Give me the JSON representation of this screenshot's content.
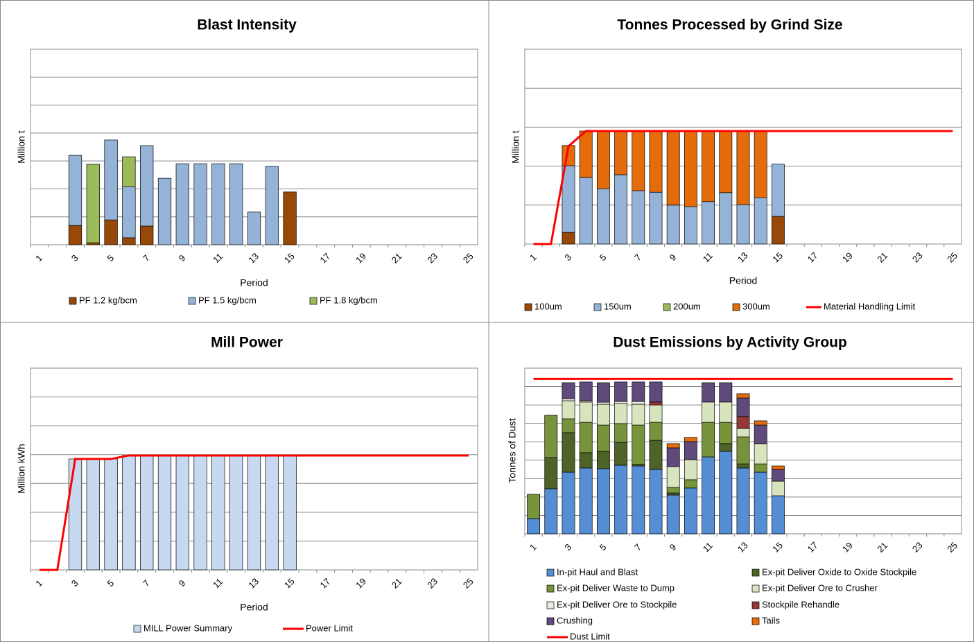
{
  "chart_data": [
    {
      "type": "bar",
      "title": "Blast Intensity",
      "x_label": "Period",
      "y_label": "Million t",
      "stacked": true,
      "grid": true,
      "legend": "bottom",
      "ylim": [
        0,
        7
      ],
      "ygrid": [
        0,
        1,
        2,
        3,
        4,
        5,
        6,
        7
      ],
      "categories": [
        "1",
        null,
        "3",
        null,
        "5",
        null,
        "7",
        null,
        "9",
        null,
        "11",
        null,
        "13",
        null,
        "15",
        null,
        "17",
        null,
        "19",
        null,
        "21",
        null,
        "23",
        null,
        "25"
      ],
      "series": [
        {
          "name": "PF 1.2 kg/bcm",
          "color": "#984807",
          "values": [
            null,
            null,
            0.69,
            0.07,
            0.89,
            0.25,
            0.67,
            null,
            null,
            null,
            null,
            null,
            null,
            null,
            1.89,
            null,
            null,
            null,
            null,
            null,
            null,
            null,
            null,
            null,
            null
          ]
        },
        {
          "name": "PF 1.5 kg/bcm",
          "color": "#95b3d7",
          "values": [
            null,
            null,
            2.51,
            null,
            2.86,
            1.83,
            2.88,
            2.38,
            2.9,
            2.9,
            2.9,
            2.9,
            1.17,
            2.8,
            null,
            null,
            null,
            null,
            null,
            null,
            null,
            null,
            null,
            null,
            null
          ]
        },
        {
          "name": "PF 1.8 kg/bcm",
          "color": "#9bbb59",
          "values": [
            null,
            null,
            null,
            2.81,
            null,
            1.07,
            null,
            null,
            null,
            null,
            null,
            null,
            null,
            null,
            null,
            null,
            null,
            null,
            null,
            null,
            null,
            null,
            null,
            null,
            null
          ]
        }
      ]
    },
    {
      "type": "bar",
      "title": "Tonnes Processed by Grind Size",
      "x_label": "Period",
      "y_label": "Million t",
      "stacked": true,
      "grid": true,
      "legend": "bottom",
      "ylim": [
        0,
        5
      ],
      "ygrid": [
        0,
        1,
        2,
        3,
        4,
        5
      ],
      "categories": [
        "1",
        null,
        "3",
        null,
        "5",
        null,
        "7",
        null,
        "9",
        null,
        "11",
        null,
        "13",
        null,
        "15",
        null,
        "17",
        null,
        "19",
        null,
        "21",
        null,
        "23",
        null,
        "25"
      ],
      "series": [
        {
          "name": "100um",
          "color": "#984807",
          "values": [
            null,
            null,
            0.3,
            null,
            null,
            null,
            null,
            null,
            null,
            null,
            null,
            null,
            null,
            null,
            0.71,
            null,
            null,
            null,
            null,
            null,
            null,
            null,
            null,
            null,
            null
          ]
        },
        {
          "name": "150um",
          "color": "#95b3d7",
          "values": [
            null,
            null,
            1.71,
            1.71,
            1.42,
            1.78,
            1.37,
            1.33,
            1.0,
            0.96,
            1.09,
            1.32,
            1.01,
            1.19,
            1.34,
            null,
            null,
            null,
            null,
            null,
            null,
            null,
            null,
            null,
            null
          ]
        },
        {
          "name": "200um",
          "color": "#9bbb59",
          "values": [
            null,
            null,
            null,
            null,
            null,
            null,
            null,
            null,
            null,
            null,
            null,
            null,
            null,
            null,
            null,
            null,
            null,
            null,
            null,
            null,
            null,
            null,
            null,
            null,
            null
          ]
        },
        {
          "name": "300um",
          "color": "#e46c0a",
          "values": [
            null,
            null,
            0.52,
            1.19,
            1.48,
            1.12,
            1.53,
            1.57,
            1.9,
            1.94,
            1.81,
            1.58,
            1.89,
            1.71,
            null,
            null,
            null,
            null,
            null,
            null,
            null,
            null,
            null,
            null,
            null
          ]
        },
        {
          "name": "Material Handling Limit",
          "type": "line",
          "color": "#ff0000",
          "values": [
            0,
            0,
            2.51,
            2.9,
            2.9,
            2.9,
            2.9,
            2.9,
            2.9,
            2.9,
            2.9,
            2.9,
            2.9,
            2.9,
            2.9,
            2.9,
            2.9,
            2.9,
            2.9,
            2.9,
            2.9,
            2.9,
            2.9,
            2.9,
            2.9
          ]
        }
      ]
    },
    {
      "type": "bar",
      "title": "Mill Power",
      "x_label": "Period",
      "y_label": "Million kWh",
      "stacked": true,
      "grid": true,
      "legend": "bottom",
      "ylim": [
        0,
        7
      ],
      "ygrid": [
        0,
        1,
        2,
        3,
        4,
        5,
        6,
        7
      ],
      "categories": [
        "1",
        null,
        "3",
        null,
        "5",
        null,
        "7",
        null,
        "9",
        null,
        "11",
        null,
        "13",
        null,
        "15",
        null,
        "17",
        null,
        "19",
        null,
        "21",
        null,
        "23",
        null,
        "25"
      ],
      "series": [
        {
          "name": "MILL Power Summary",
          "color": "#c6d9f1",
          "values": [
            null,
            null,
            3.85,
            3.85,
            3.85,
            3.97,
            3.97,
            3.97,
            3.97,
            3.97,
            3.97,
            3.97,
            3.97,
            3.97,
            3.97,
            null,
            null,
            null,
            null,
            null,
            null,
            null,
            null,
            null,
            null
          ]
        },
        {
          "name": "Power Limit",
          "type": "line",
          "color": "#ff0000",
          "values": [
            0,
            0,
            3.85,
            3.85,
            3.85,
            3.97,
            3.97,
            3.97,
            3.97,
            3.97,
            3.97,
            3.97,
            3.97,
            3.97,
            3.97,
            3.97,
            3.97,
            3.97,
            3.97,
            3.97,
            3.97,
            3.97,
            3.97,
            3.97,
            3.97
          ]
        }
      ]
    },
    {
      "type": "bar",
      "title": "Dust Emissions by Activity Group",
      "y_label": "Tonnes of Dust",
      "stacked": true,
      "grid": true,
      "legend": "bottom",
      "ylim": [
        0,
        9
      ],
      "ygrid": [
        0,
        1,
        2,
        3,
        4,
        5,
        6,
        7,
        8,
        9
      ],
      "categories": [
        "1",
        null,
        "3",
        null,
        "5",
        null,
        "7",
        null,
        "9",
        null,
        "11",
        null,
        "13",
        null,
        "15",
        null,
        "17",
        null,
        "19",
        null,
        "21",
        null,
        "23",
        null,
        "25"
      ],
      "series": [
        {
          "name": "In-pit Haul and Blast",
          "color": "#558ed5",
          "values": [
            0.83,
            2.45,
            3.35,
            3.58,
            3.54,
            3.73,
            3.69,
            3.5,
            2.11,
            2.49,
            4.18,
            4.48,
            3.58,
            3.35,
            2.07,
            null,
            null,
            null,
            null,
            null,
            null,
            null,
            null,
            null,
            null
          ]
        },
        {
          "name": "Ex-pit Deliver Oxide to Oxide Stockpile",
          "color": "#4f6228",
          "values": [
            null,
            1.69,
            2.15,
            0.83,
            0.94,
            1.24,
            0.08,
            1.58,
            0.11,
            null,
            null,
            0.42,
            0.22,
            null,
            null,
            null,
            null,
            null,
            null,
            null,
            null,
            null,
            null,
            null,
            null
          ]
        },
        {
          "name": "Ex-pit Deliver Waste to Dump",
          "color": "#77933c",
          "values": [
            1.32,
            2.3,
            0.75,
            1.65,
            1.43,
            1.02,
            2.14,
            0.98,
            0.3,
            0.45,
            1.88,
            1.16,
            1.47,
            0.45,
            null,
            null,
            null,
            null,
            null,
            null,
            null,
            null,
            null,
            null,
            null
          ]
        },
        {
          "name": "Ex-pit Deliver Ore to Crusher",
          "color": "#d7e4bd",
          "values": [
            null,
            null,
            0.98,
            1.1,
            1.13,
            1.09,
            1.13,
            0.94,
            1.13,
            1.09,
            1.1,
            1.1,
            0.45,
            1.1,
            0.79,
            null,
            null,
            null,
            null,
            null,
            null,
            null,
            null,
            null,
            null
          ]
        },
        {
          "name": "Ex-pit Deliver Ore to Stockpile",
          "color": "#eeece1",
          "values": [
            null,
            null,
            0.11,
            0.07,
            0.11,
            0.11,
            0.15,
            null,
            null,
            null,
            null,
            null,
            null,
            null,
            null,
            null,
            null,
            null,
            null,
            null,
            null,
            null,
            null,
            null,
            null
          ]
        },
        {
          "name": "Stockpile Rehandle",
          "color": "#953735",
          "values": [
            null,
            null,
            null,
            null,
            null,
            null,
            null,
            0.16,
            null,
            null,
            null,
            null,
            0.65,
            null,
            null,
            null,
            null,
            null,
            null,
            null,
            null,
            null,
            null,
            null,
            null
          ]
        },
        {
          "name": "Crushing",
          "color": "#604a7b",
          "values": [
            null,
            null,
            0.87,
            1.02,
            1.06,
            1.06,
            1.06,
            1.09,
            1.02,
            0.98,
            1.05,
            1.05,
            1.01,
            1.01,
            0.64,
            null,
            null,
            null,
            null,
            null,
            null,
            null,
            null,
            null,
            null
          ]
        },
        {
          "name": "Tails",
          "color": "#e46c0a",
          "values": [
            null,
            null,
            null,
            null,
            null,
            null,
            null,
            null,
            0.23,
            0.23,
            null,
            null,
            0.23,
            0.23,
            0.19,
            null,
            null,
            null,
            null,
            null,
            null,
            null,
            null,
            null,
            null
          ]
        },
        {
          "name": "Dust Limit",
          "type": "line",
          "color": "#ff0000",
          "values": [
            8.42,
            8.42,
            8.42,
            8.42,
            8.42,
            8.42,
            8.42,
            8.42,
            8.42,
            8.42,
            8.42,
            8.42,
            8.42,
            8.42,
            8.42,
            8.42,
            8.42,
            8.42,
            8.42,
            8.42,
            8.42,
            8.42,
            8.42,
            8.42,
            8.42
          ]
        }
      ]
    }
  ]
}
